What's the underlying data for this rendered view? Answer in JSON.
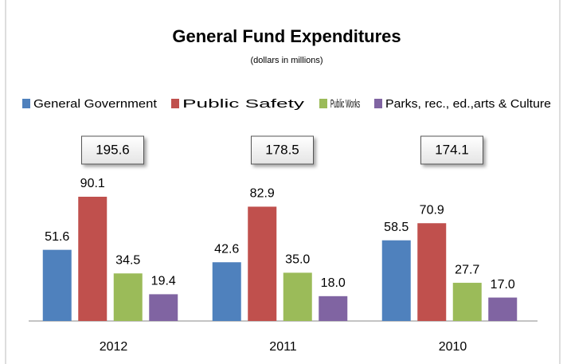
{
  "chart_data": {
    "type": "bar",
    "title": "General Fund Expenditures",
    "subtitle": "(dollars in millions)",
    "categories": [
      "2012",
      "2011",
      "2010"
    ],
    "series": [
      {
        "name": "General Government",
        "color": "#4f81bd",
        "values": [
          51.6,
          42.6,
          58.5
        ],
        "value_labels": [
          "51.6",
          "42.6",
          "58.5"
        ]
      },
      {
        "name": "Public Safety",
        "color": "#c0504d",
        "values": [
          90.1,
          82.9,
          70.9
        ],
        "value_labels": [
          "90.1",
          "82.9",
          "70.9"
        ]
      },
      {
        "name": "Public Works",
        "color": "#9bbb59",
        "values": [
          34.5,
          35.0,
          27.7
        ],
        "value_labels": [
          "34.5",
          "35.0",
          "27.7"
        ]
      },
      {
        "name": "Parks, rec., ed.,arts & Culture",
        "color": "#8064a2",
        "values": [
          19.4,
          18.0,
          17.0
        ],
        "value_labels": [
          "19.4",
          "18.0",
          "17.0"
        ]
      }
    ],
    "totals": [
      195.6,
      178.5,
      174.1
    ],
    "legend": "top"
  }
}
